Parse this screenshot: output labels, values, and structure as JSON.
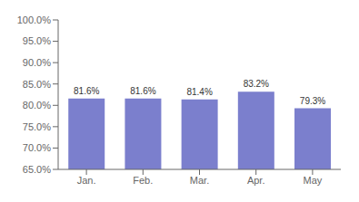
{
  "chart_data": {
    "type": "bar",
    "categories": [
      "Jan.",
      "Feb.",
      "Mar.",
      "Apr.",
      "May"
    ],
    "values": [
      0.816,
      0.816,
      0.814,
      0.832,
      0.793
    ],
    "value_labels": [
      "81.6%",
      "81.6%",
      "81.4%",
      "83.2%",
      "79.3%"
    ],
    "color": "#7b7fcd",
    "ylim": [
      0.65,
      1.0
    ],
    "yticks": [
      {
        "value": 0.65,
        "label": "65.0%"
      },
      {
        "value": 0.7,
        "label": "70.0%"
      },
      {
        "value": 0.75,
        "label": "75.0%"
      },
      {
        "value": 0.8,
        "label": "80.0%"
      },
      {
        "value": 0.85,
        "label": "85.0%"
      },
      {
        "value": 0.9,
        "label": "90.0%"
      },
      {
        "value": 0.95,
        "label": "95.0%"
      },
      {
        "value": 1.0,
        "label": "100.0%"
      }
    ],
    "data_labels": true,
    "grid": false
  }
}
